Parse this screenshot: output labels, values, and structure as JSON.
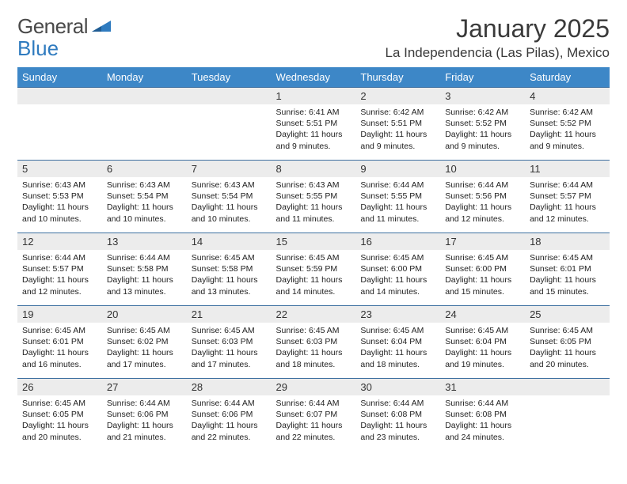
{
  "logo": {
    "text1": "General",
    "text2": "Blue",
    "triangle_color": "#2f7bbf"
  },
  "title": "January 2025",
  "location": "La Independencia (Las Pilas), Mexico",
  "header_bg": "#3d87c7",
  "header_fg": "#ffffff",
  "daynum_bg": "#ececec",
  "row_border": "#3d6fa0",
  "text_color": "#222222",
  "day_headers": [
    "Sunday",
    "Monday",
    "Tuesday",
    "Wednesday",
    "Thursday",
    "Friday",
    "Saturday"
  ],
  "weeks": [
    [
      null,
      null,
      null,
      {
        "n": "1",
        "sr": "6:41 AM",
        "ss": "5:51 PM",
        "dl": "11 hours and 9 minutes."
      },
      {
        "n": "2",
        "sr": "6:42 AM",
        "ss": "5:51 PM",
        "dl": "11 hours and 9 minutes."
      },
      {
        "n": "3",
        "sr": "6:42 AM",
        "ss": "5:52 PM",
        "dl": "11 hours and 9 minutes."
      },
      {
        "n": "4",
        "sr": "6:42 AM",
        "ss": "5:52 PM",
        "dl": "11 hours and 9 minutes."
      }
    ],
    [
      {
        "n": "5",
        "sr": "6:43 AM",
        "ss": "5:53 PM",
        "dl": "11 hours and 10 minutes."
      },
      {
        "n": "6",
        "sr": "6:43 AM",
        "ss": "5:54 PM",
        "dl": "11 hours and 10 minutes."
      },
      {
        "n": "7",
        "sr": "6:43 AM",
        "ss": "5:54 PM",
        "dl": "11 hours and 10 minutes."
      },
      {
        "n": "8",
        "sr": "6:43 AM",
        "ss": "5:55 PM",
        "dl": "11 hours and 11 minutes."
      },
      {
        "n": "9",
        "sr": "6:44 AM",
        "ss": "5:55 PM",
        "dl": "11 hours and 11 minutes."
      },
      {
        "n": "10",
        "sr": "6:44 AM",
        "ss": "5:56 PM",
        "dl": "11 hours and 12 minutes."
      },
      {
        "n": "11",
        "sr": "6:44 AM",
        "ss": "5:57 PM",
        "dl": "11 hours and 12 minutes."
      }
    ],
    [
      {
        "n": "12",
        "sr": "6:44 AM",
        "ss": "5:57 PM",
        "dl": "11 hours and 12 minutes."
      },
      {
        "n": "13",
        "sr": "6:44 AM",
        "ss": "5:58 PM",
        "dl": "11 hours and 13 minutes."
      },
      {
        "n": "14",
        "sr": "6:45 AM",
        "ss": "5:58 PM",
        "dl": "11 hours and 13 minutes."
      },
      {
        "n": "15",
        "sr": "6:45 AM",
        "ss": "5:59 PM",
        "dl": "11 hours and 14 minutes."
      },
      {
        "n": "16",
        "sr": "6:45 AM",
        "ss": "6:00 PM",
        "dl": "11 hours and 14 minutes."
      },
      {
        "n": "17",
        "sr": "6:45 AM",
        "ss": "6:00 PM",
        "dl": "11 hours and 15 minutes."
      },
      {
        "n": "18",
        "sr": "6:45 AM",
        "ss": "6:01 PM",
        "dl": "11 hours and 15 minutes."
      }
    ],
    [
      {
        "n": "19",
        "sr": "6:45 AM",
        "ss": "6:01 PM",
        "dl": "11 hours and 16 minutes."
      },
      {
        "n": "20",
        "sr": "6:45 AM",
        "ss": "6:02 PM",
        "dl": "11 hours and 17 minutes."
      },
      {
        "n": "21",
        "sr": "6:45 AM",
        "ss": "6:03 PM",
        "dl": "11 hours and 17 minutes."
      },
      {
        "n": "22",
        "sr": "6:45 AM",
        "ss": "6:03 PM",
        "dl": "11 hours and 18 minutes."
      },
      {
        "n": "23",
        "sr": "6:45 AM",
        "ss": "6:04 PM",
        "dl": "11 hours and 18 minutes."
      },
      {
        "n": "24",
        "sr": "6:45 AM",
        "ss": "6:04 PM",
        "dl": "11 hours and 19 minutes."
      },
      {
        "n": "25",
        "sr": "6:45 AM",
        "ss": "6:05 PM",
        "dl": "11 hours and 20 minutes."
      }
    ],
    [
      {
        "n": "26",
        "sr": "6:45 AM",
        "ss": "6:05 PM",
        "dl": "11 hours and 20 minutes."
      },
      {
        "n": "27",
        "sr": "6:44 AM",
        "ss": "6:06 PM",
        "dl": "11 hours and 21 minutes."
      },
      {
        "n": "28",
        "sr": "6:44 AM",
        "ss": "6:06 PM",
        "dl": "11 hours and 22 minutes."
      },
      {
        "n": "29",
        "sr": "6:44 AM",
        "ss": "6:07 PM",
        "dl": "11 hours and 22 minutes."
      },
      {
        "n": "30",
        "sr": "6:44 AM",
        "ss": "6:08 PM",
        "dl": "11 hours and 23 minutes."
      },
      {
        "n": "31",
        "sr": "6:44 AM",
        "ss": "6:08 PM",
        "dl": "11 hours and 24 minutes."
      },
      null
    ]
  ],
  "labels": {
    "sunrise": "Sunrise: ",
    "sunset": "Sunset: ",
    "daylight": "Daylight: "
  }
}
